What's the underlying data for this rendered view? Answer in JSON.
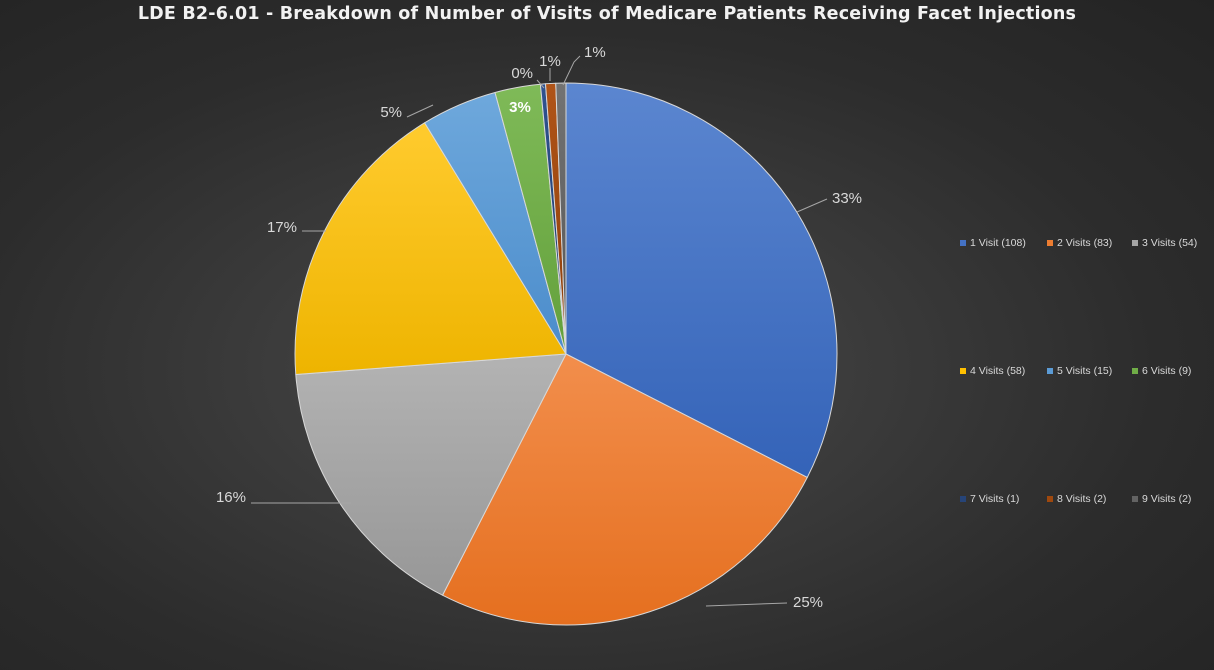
{
  "chart_data": {
    "type": "pie",
    "title": "LDE B2-6.01 - Breakdown of Number of Visits of Medicare Patients Receiving Facet Injections",
    "categories": [
      "1 Visit (108)",
      "2 Visits (83)",
      "3 Visits (54)",
      "4 Visits (58)",
      "5 Visits (15)",
      "6 Visits (9)",
      "7 Visits (1)",
      "8 Visits (2)",
      "9 Visits (2)"
    ],
    "values": [
      108,
      83,
      54,
      58,
      15,
      9,
      1,
      2,
      2
    ],
    "data_labels": [
      "33%",
      "25%",
      "16%",
      "17%",
      "5%",
      "3%",
      "0%",
      "1%",
      "1%"
    ],
    "colors": [
      "#4472C4",
      "#ED7D31",
      "#A5A5A5",
      "#FFC000",
      "#5B9BD5",
      "#70AD47",
      "#264478",
      "#9E480E",
      "#636363"
    ],
    "legend_position": "right",
    "start_angle": "12 o'clock",
    "direction": "clockwise"
  }
}
